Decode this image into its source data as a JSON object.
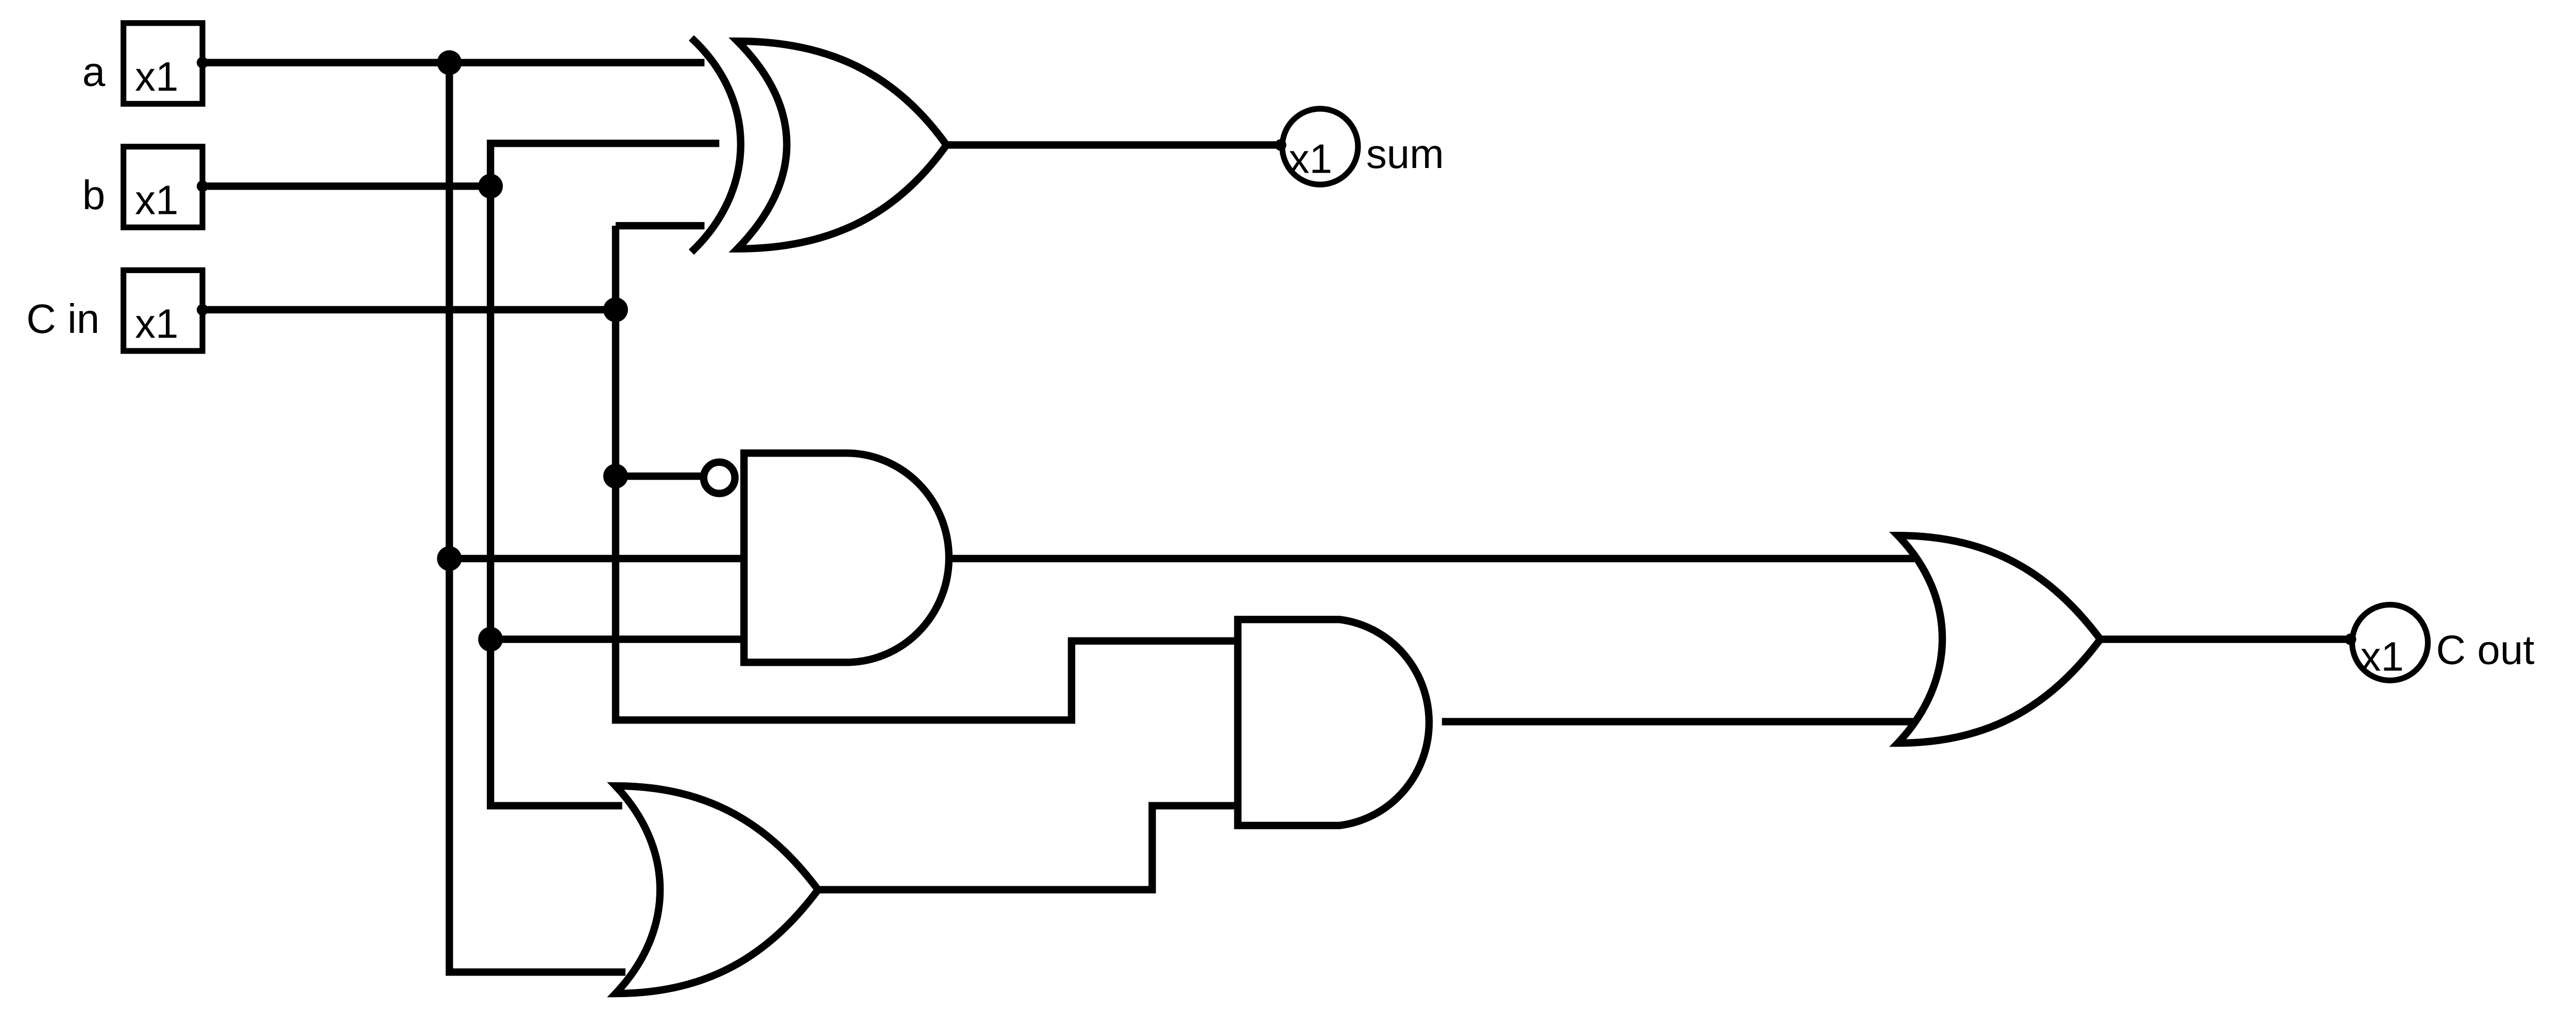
{
  "inputs": [
    {
      "name": "a",
      "value": "x1"
    },
    {
      "name": "b",
      "value": "x1"
    },
    {
      "name": "C in",
      "value": "x1"
    }
  ],
  "outputs": [
    {
      "name": "sum",
      "value": "x1"
    },
    {
      "name": "C out",
      "value": "x1"
    }
  ],
  "gates": [
    {
      "type": "XOR",
      "inputs": [
        "a",
        "b",
        "C in"
      ],
      "output": "sum"
    },
    {
      "type": "AND",
      "inputs": [
        "NOT C in",
        "a",
        "b"
      ]
    },
    {
      "type": "OR",
      "inputs": [
        "b",
        "a"
      ]
    },
    {
      "type": "AND",
      "inputs": [
        "C in",
        "OR(a,b)"
      ]
    },
    {
      "type": "OR",
      "inputs": [
        "AND(NOT C in,a,b)",
        "AND(C in, OR(a,b))"
      ],
      "output": "C out"
    }
  ]
}
